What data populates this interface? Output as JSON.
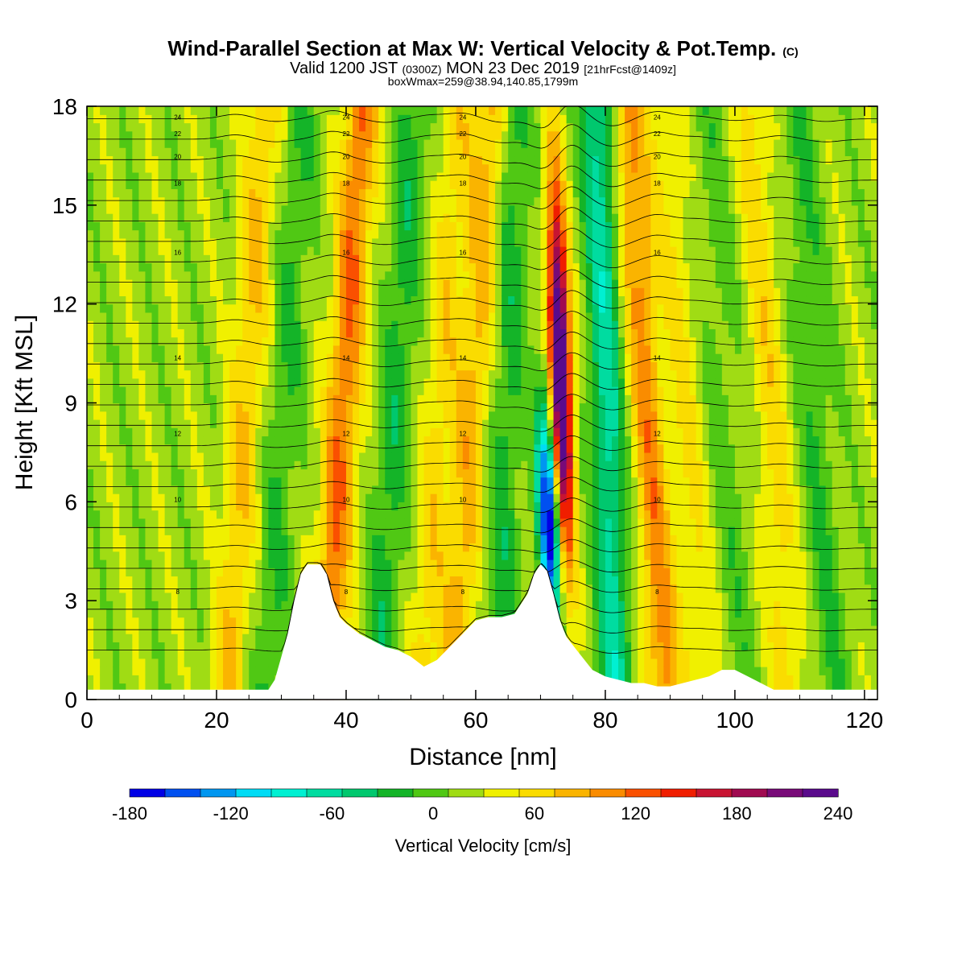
{
  "chart_data": {
    "type": "heatmap",
    "title": "Wind-Parallel Section at Max W: Vertical Velocity & Pot.Temp.",
    "title_mark": "(C)",
    "subtitle_parts": [
      "Valid 1200 JST",
      "(0300Z)",
      "MON 23 Dec 2019",
      "[21hrFcst@1409z]"
    ],
    "subtitle2": "boxWmax=259@38.94,140.85,1799m",
    "xlabel": "Distance [nm]",
    "ylabel": "Height [Kft MSL]",
    "xlim": [
      0,
      122
    ],
    "ylim": [
      0,
      18
    ],
    "xticks": [
      0,
      20,
      40,
      60,
      80,
      100,
      120
    ],
    "yticks": [
      0,
      3,
      6,
      9,
      12,
      15,
      18
    ],
    "colorbar": {
      "label": "Vertical Velocity [cm/s]",
      "levels": [
        -180,
        -160,
        -140,
        -120,
        -100,
        -80,
        -60,
        -40,
        -20,
        0,
        20,
        40,
        60,
        80,
        100,
        120,
        140,
        160,
        180,
        200,
        220,
        240
      ],
      "tick_labels": [
        -180,
        -120,
        -60,
        0,
        60,
        120,
        180,
        240
      ],
      "colors": [
        "#0000e6",
        "#0050f0",
        "#0096f0",
        "#00dcf5",
        "#00f0d2",
        "#00dca0",
        "#00c86e",
        "#14b428",
        "#50c814",
        "#a0dc14",
        "#f0f000",
        "#fadc00",
        "#fab400",
        "#fa8c00",
        "#fa5000",
        "#f01e00",
        "#c81432",
        "#a00a50",
        "#780a78",
        "#5a0a8c"
      ]
    },
    "terrain": [
      [
        0,
        0.3
      ],
      [
        5,
        0.3
      ],
      [
        10,
        0.3
      ],
      [
        15,
        0.3
      ],
      [
        20,
        0.3
      ],
      [
        25,
        0.3
      ],
      [
        28,
        0.3
      ],
      [
        29,
        0.6
      ],
      [
        30,
        1.3
      ],
      [
        31,
        2.0
      ],
      [
        32,
        3.0
      ],
      [
        33,
        3.8
      ],
      [
        34,
        4.1
      ],
      [
        36,
        4.1
      ],
      [
        37,
        3.8
      ],
      [
        38,
        3.0
      ],
      [
        39,
        2.5
      ],
      [
        40,
        2.3
      ],
      [
        42,
        2.0
      ],
      [
        44,
        1.8
      ],
      [
        46,
        1.6
      ],
      [
        48,
        1.5
      ],
      [
        50,
        1.3
      ],
      [
        52,
        1.0
      ],
      [
        54,
        1.2
      ],
      [
        56,
        1.6
      ],
      [
        58,
        2.0
      ],
      [
        60,
        2.4
      ],
      [
        62,
        2.5
      ],
      [
        64,
        2.5
      ],
      [
        66,
        2.6
      ],
      [
        68,
        3.2
      ],
      [
        69,
        3.8
      ],
      [
        70,
        4.1
      ],
      [
        71,
        3.9
      ],
      [
        72,
        3.2
      ],
      [
        73,
        2.4
      ],
      [
        74,
        1.9
      ],
      [
        76,
        1.4
      ],
      [
        78,
        0.9
      ],
      [
        80,
        0.7
      ],
      [
        82,
        0.6
      ],
      [
        84,
        0.5
      ],
      [
        86,
        0.5
      ],
      [
        88,
        0.4
      ],
      [
        90,
        0.4
      ],
      [
        92,
        0.5
      ],
      [
        94,
        0.6
      ],
      [
        96,
        0.7
      ],
      [
        98,
        0.9
      ],
      [
        100,
        0.9
      ],
      [
        102,
        0.7
      ],
      [
        104,
        0.5
      ],
      [
        106,
        0.3
      ],
      [
        110,
        0.3
      ],
      [
        115,
        0.3
      ],
      [
        122,
        0.3
      ]
    ],
    "wave_axes": [
      23,
      29,
      38,
      46,
      53,
      58,
      64,
      71.5,
      74,
      81,
      88,
      94,
      100,
      107,
      114
    ],
    "wave_amplitudes": [
      50,
      -30,
      90,
      -40,
      40,
      60,
      -40,
      -190,
      250,
      -80,
      80,
      30,
      -20,
      40,
      -30
    ],
    "theta_contours": [
      {
        "label": "8",
        "h": 3.2
      },
      {
        "label": "10",
        "h": 6.0
      },
      {
        "label": "12",
        "h": 8.0
      },
      {
        "label": "14",
        "h": 10.3
      },
      {
        "label": "16",
        "h": 13.5
      },
      {
        "label": "18",
        "h": 15.6
      },
      {
        "label": "20",
        "h": 16.4
      },
      {
        "label": "22",
        "h": 17.1
      },
      {
        "label": "24",
        "h": 17.6
      }
    ]
  }
}
